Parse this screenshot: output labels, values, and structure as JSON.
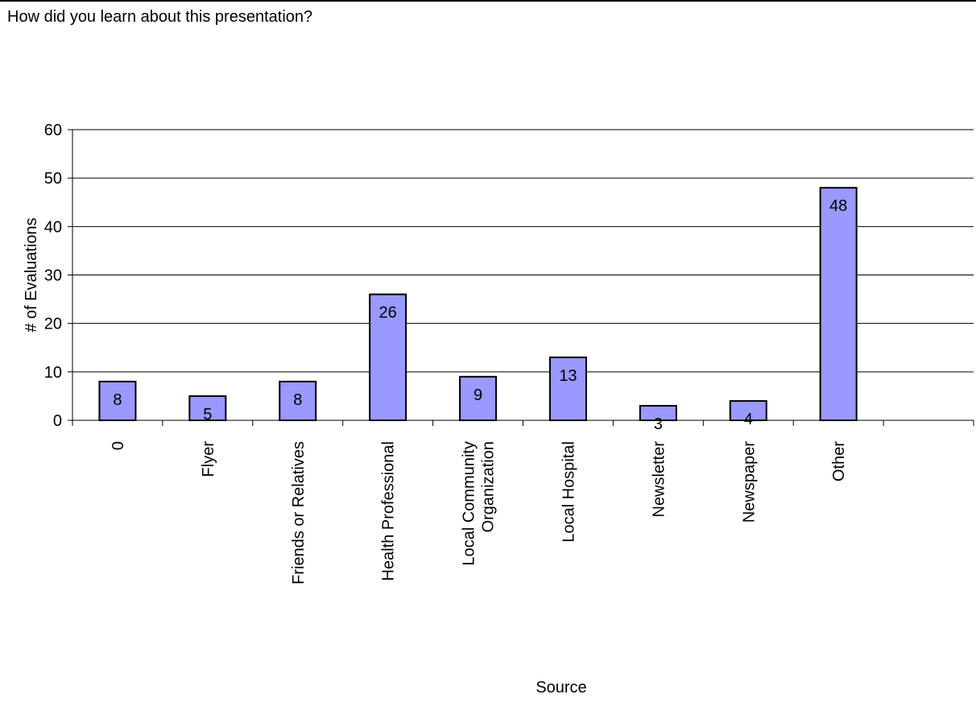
{
  "question": "How did you learn about this presentation?",
  "chart_data": {
    "type": "bar",
    "title": "",
    "xlabel": "Source",
    "ylabel": "# of Evaluations",
    "ylim": [
      0,
      60
    ],
    "yticks": [
      0,
      10,
      20,
      30,
      40,
      50,
      60
    ],
    "grid": true,
    "categories": [
      "0",
      "Flyer",
      "Friends or Relatives",
      "Health Professional",
      "Local Community\nOrganization",
      "Local Hospital",
      "Newsletter",
      "Newspaper",
      "Other"
    ],
    "values": [
      8,
      5,
      8,
      26,
      9,
      13,
      3,
      4,
      48
    ],
    "data_labels": [
      "8",
      "5",
      "8",
      "26",
      "9",
      "13",
      "3",
      "4",
      "48"
    ],
    "bar_color": "#9999ff",
    "bar_stroke": "#000000"
  }
}
